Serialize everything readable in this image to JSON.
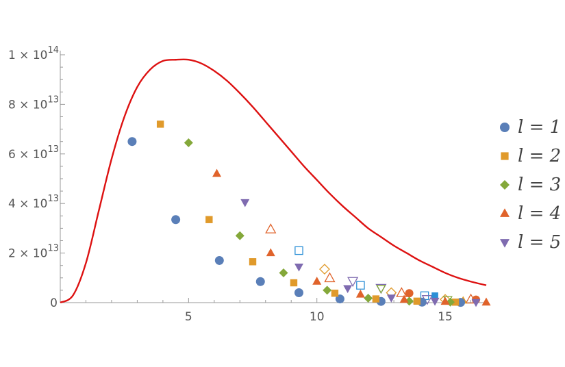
{
  "chart_data": {
    "type": "scatter",
    "title": "",
    "xlabel": "",
    "ylabel": "",
    "xlim": [
      0,
      16.6
    ],
    "ylim": [
      0,
      100000000000000
    ],
    "x_ticks": [
      {
        "value": 5,
        "label": "5"
      },
      {
        "value": 10,
        "label": "10"
      },
      {
        "value": 15,
        "label": "15"
      }
    ],
    "y_ticks": [
      {
        "value": 0,
        "label": "0",
        "exp": ""
      },
      {
        "value": 20000000000000,
        "label": "2 × 10",
        "exp": "13"
      },
      {
        "value": 40000000000000,
        "label": "4 × 10",
        "exp": "13"
      },
      {
        "value": 60000000000000,
        "label": "6 × 10",
        "exp": "13"
      },
      {
        "value": 80000000000000,
        "label": "8 × 10",
        "exp": "13"
      },
      {
        "value": 100000000000000,
        "label": "1 × 10",
        "exp": "14"
      }
    ],
    "legend_position": "right",
    "curve": {
      "color": "#dd1111",
      "x": [
        0,
        0.5,
        1,
        1.5,
        2,
        2.5,
        3,
        3.5,
        4,
        4.5,
        5,
        5.5,
        6,
        6.5,
        7,
        7.5,
        8,
        8.5,
        9,
        9.5,
        10,
        10.5,
        11,
        11.5,
        12,
        12.5,
        13,
        13.5,
        14,
        14.5,
        15,
        15.5,
        16,
        16.6
      ],
      "y": [
        0,
        3000000000000,
        16000000000000,
        37000000000000,
        58000000000000,
        75000000000000,
        87000000000000,
        94000000000000,
        97500000000000,
        98000000000000,
        98000000000000,
        96500000000000,
        93500000000000,
        89500000000000,
        84500000000000,
        79000000000000,
        73000000000000,
        67000000000000,
        61000000000000,
        55000000000000,
        49500000000000,
        44000000000000,
        39000000000000,
        34500000000000,
        30000000000000,
        26500000000000,
        23000000000000,
        20000000000000,
        17000000000000,
        14500000000000,
        12000000000000,
        10000000000000,
        8500000000000,
        7000000000000
      ]
    },
    "series": [
      {
        "name": "l = 1",
        "marker": "circle",
        "color": "#5a7fb8",
        "x": [
          2.8,
          4.5,
          6.2,
          7.8,
          9.3,
          10.9,
          12.5,
          14.1,
          15.6
        ],
        "y": [
          65000000000000,
          33500000000000,
          17000000000000,
          8500000000000,
          4000000000000,
          1500000000000,
          500000000000,
          200000000000,
          100000000000
        ],
        "hollow_x": [],
        "hollow_y": []
      },
      {
        "name": "l = 2",
        "marker": "square",
        "color": "#e09a2b",
        "x": [
          3.9,
          5.8,
          7.5,
          9.1,
          10.7,
          12.3,
          13.9,
          15.4
        ],
        "y": [
          72000000000000,
          33500000000000,
          16500000000000,
          8000000000000,
          3800000000000,
          1500000000000,
          600000000000,
          200000000000
        ],
        "hollow_x": [
          9.3,
          11.7,
          14.2
        ],
        "hollow_y": [
          21000000000000,
          7000000000000,
          2800000000000
        ],
        "hollow_color": "#2b8fd6"
      },
      {
        "name": "l = 3",
        "marker": "diamond",
        "color": "#84a83a",
        "x": [
          5.0,
          7.0,
          8.7,
          10.4,
          12.0,
          13.6,
          15.2
        ],
        "y": [
          64500000000000,
          27000000000000,
          12000000000000,
          5000000000000,
          1800000000000,
          600000000000,
          200000000000
        ],
        "hollow_x": [
          10.3,
          12.9,
          15.0
        ],
        "hollow_y": [
          13500000000000,
          4000000000000,
          1300000000000
        ],
        "hollow_color": "#e09a2b"
      },
      {
        "name": "l = 4",
        "marker": "triangle-up",
        "color": "#e0632b",
        "x": [
          6.1,
          8.2,
          10.0,
          11.7,
          13.4,
          15.0,
          16.6
        ],
        "y": [
          52000000000000,
          20000000000000,
          8500000000000,
          3300000000000,
          1200000000000,
          400000000000,
          100000000000
        ],
        "hollow_x": [
          8.2,
          10.5,
          13.3,
          16.0
        ],
        "hollow_y": [
          29500000000000,
          9800000000000,
          3800000000000,
          1200000000000
        ],
        "hollow_color": "#e0632b"
      },
      {
        "name": "l = 5",
        "marker": "triangle-down",
        "color": "#7f6bb0",
        "x": [
          7.2,
          9.3,
          11.2,
          12.9,
          14.6,
          16.2
        ],
        "y": [
          40500000000000,
          14500000000000,
          5800000000000,
          2000000000000,
          700000000000,
          200000000000
        ],
        "hollow_x": [
          11.4,
          12.5,
          14.3
        ],
        "hollow_y": [
          8800000000000,
          6000000000000,
          1500000000000
        ],
        "hollow_color": "#7f6bb0"
      }
    ],
    "extra_points": [
      {
        "marker": "circle",
        "color": "#e0632b",
        "x": 13.6,
        "y": 3800000000000
      },
      {
        "marker": "circle",
        "color": "#e0632b",
        "x": 16.2,
        "y": 1200000000000
      },
      {
        "marker": "square",
        "color": "#2b8fd6",
        "x": 14.6,
        "y": 2800000000000
      },
      {
        "marker": "triangle-down",
        "color": "#84a83a",
        "x": 12.5,
        "y": 5800000000000
      },
      {
        "marker": "triangle-up",
        "color": "#e09a2b",
        "x": 15.7,
        "y": 800000000000
      },
      {
        "marker": "triangle-down",
        "color": "#84a83a",
        "x": 15.1,
        "y": 1300000000000
      }
    ]
  }
}
